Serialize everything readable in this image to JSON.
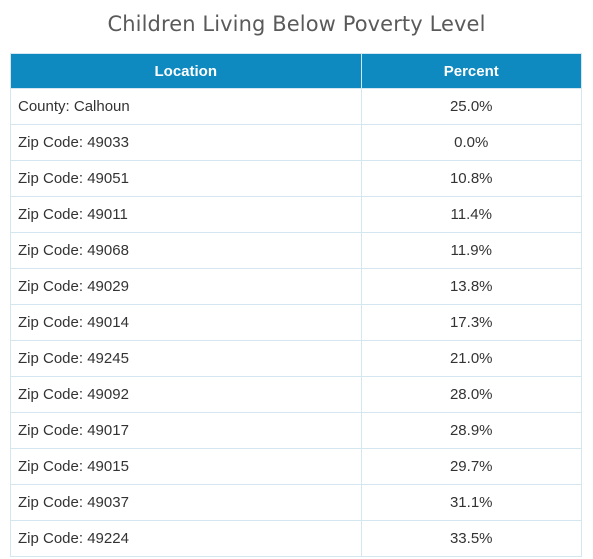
{
  "chart_data": {
    "type": "table",
    "title": "Children Living Below Poverty Level",
    "columns": [
      "Location",
      "Percent"
    ],
    "rows": [
      [
        "County: Calhoun",
        "25.0%"
      ],
      [
        "Zip Code: 49033",
        "0.0%"
      ],
      [
        "Zip Code: 49051",
        "10.8%"
      ],
      [
        "Zip Code: 49011",
        "11.4%"
      ],
      [
        "Zip Code: 49068",
        "11.9%"
      ],
      [
        "Zip Code: 49029",
        "13.8%"
      ],
      [
        "Zip Code: 49014",
        "17.3%"
      ],
      [
        "Zip Code: 49245",
        "21.0%"
      ],
      [
        "Zip Code: 49092",
        "28.0%"
      ],
      [
        "Zip Code: 49017",
        "28.9%"
      ],
      [
        "Zip Code: 49015",
        "29.7%"
      ],
      [
        "Zip Code: 49037",
        "31.1%"
      ],
      [
        "Zip Code: 49224",
        "33.5%"
      ]
    ],
    "colors": {
      "header_background": "#0e8ac1",
      "header_text": "#ffffff",
      "border": "#d4e6ef",
      "cell_text": "#333333",
      "title_text": "#5a5a5a"
    }
  }
}
